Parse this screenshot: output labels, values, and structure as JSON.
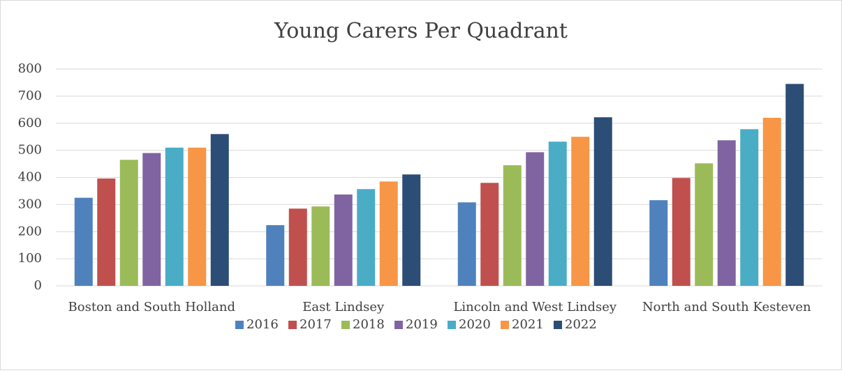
{
  "chart_data": {
    "type": "bar",
    "title": "Young Carers Per Quadrant",
    "categories": [
      "Boston and South Holland",
      "East Lindsey",
      "Lincoln and West Lindsey",
      "North and South Kesteven"
    ],
    "series": [
      {
        "name": "2016",
        "color": "#4f81bd",
        "values": [
          325,
          224,
          308,
          316
        ]
      },
      {
        "name": "2017",
        "color": "#c0504d",
        "values": [
          396,
          285,
          380,
          398
        ]
      },
      {
        "name": "2018",
        "color": "#9bbb59",
        "values": [
          465,
          293,
          445,
          452
        ]
      },
      {
        "name": "2019",
        "color": "#8064a2",
        "values": [
          490,
          337,
          493,
          537
        ]
      },
      {
        "name": "2020",
        "color": "#4bacc6",
        "values": [
          510,
          357,
          532,
          578
        ]
      },
      {
        "name": "2021",
        "color": "#f79646",
        "values": [
          510,
          385,
          550,
          620
        ]
      },
      {
        "name": "2022",
        "color": "#2c4d75",
        "values": [
          560,
          411,
          622,
          745
        ]
      }
    ],
    "ylim": [
      0,
      800
    ],
    "yticks": [
      0,
      100,
      200,
      300,
      400,
      500,
      600,
      700,
      800
    ],
    "grid": true,
    "legend": "bottom"
  }
}
